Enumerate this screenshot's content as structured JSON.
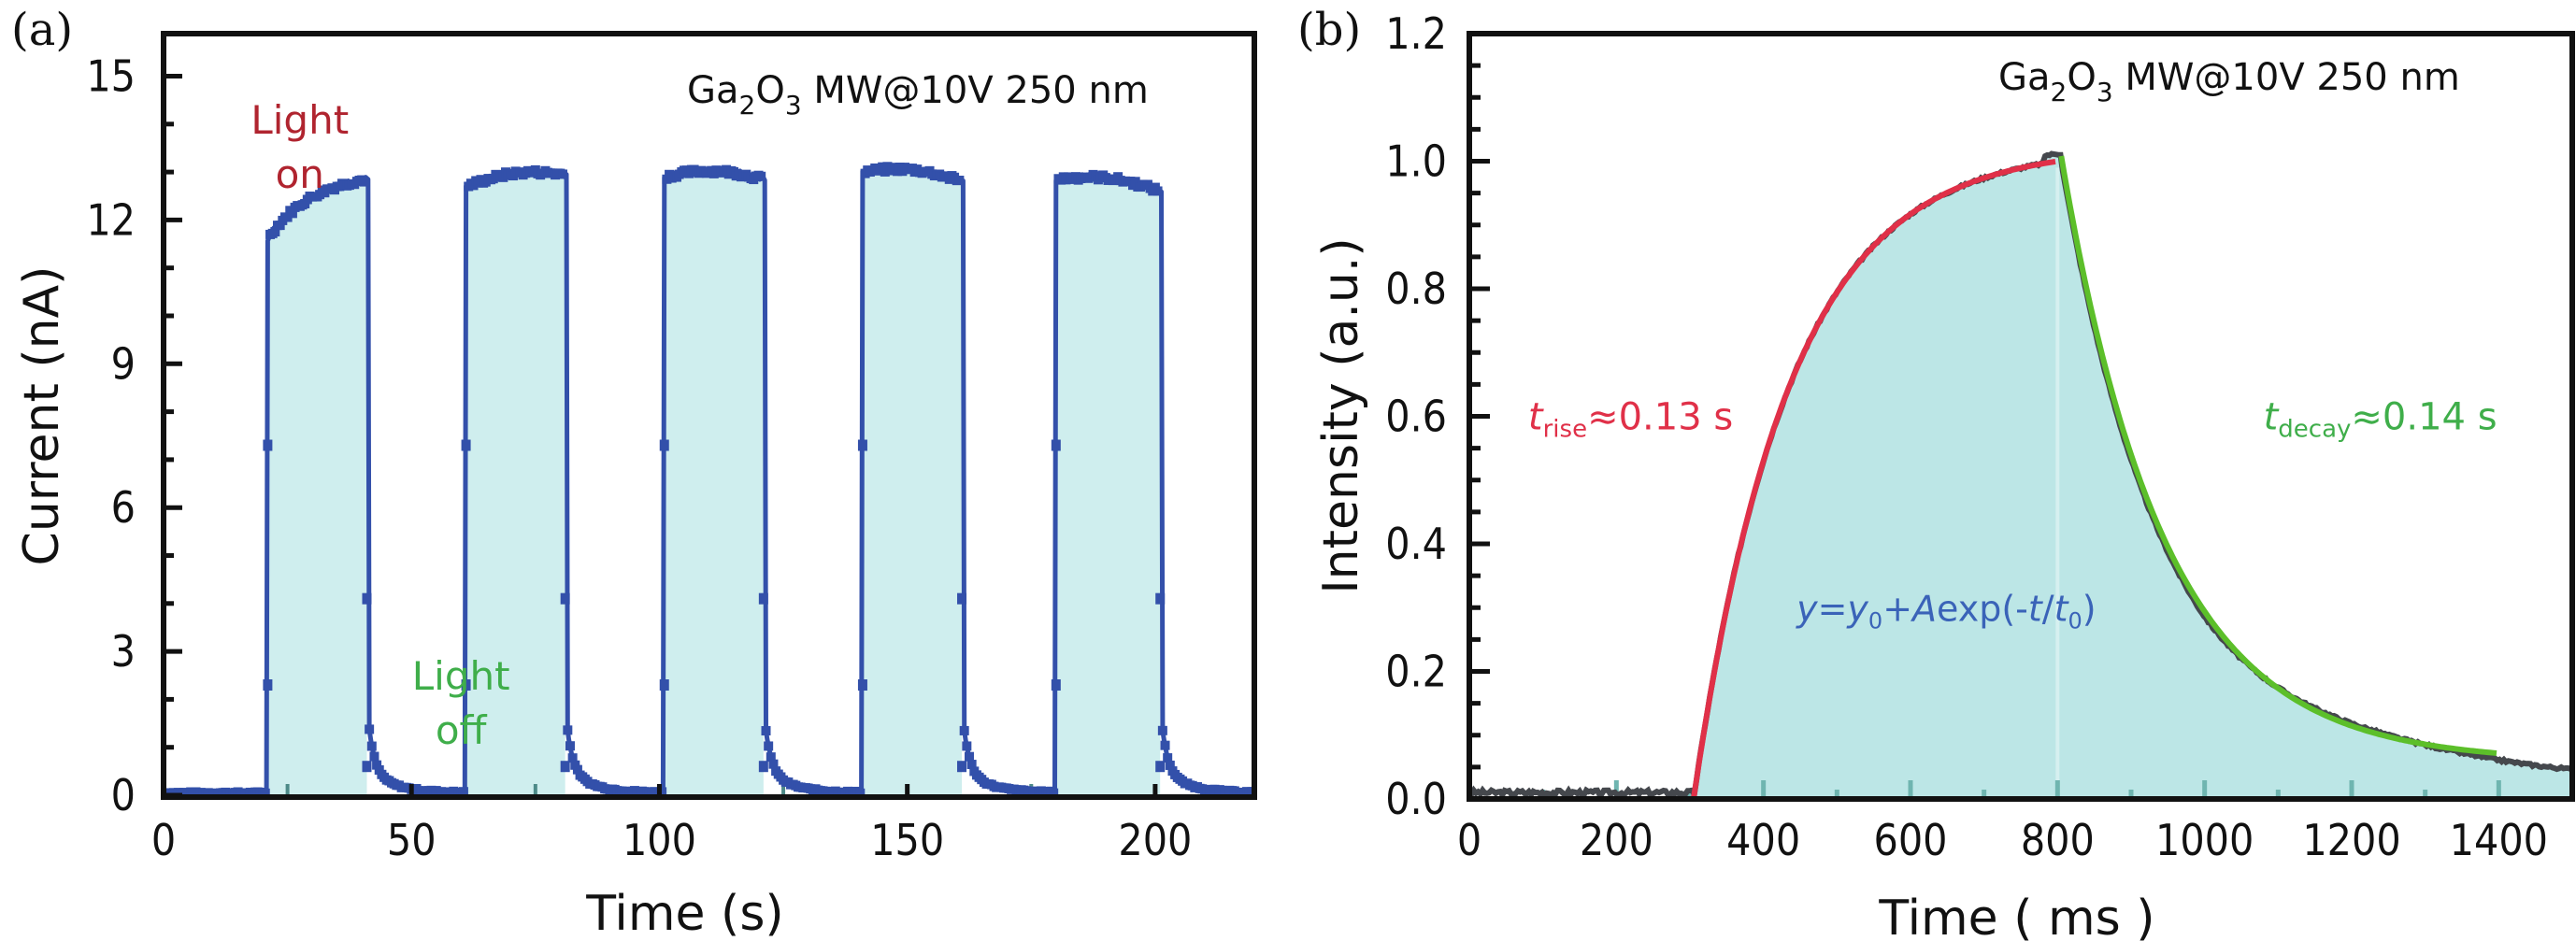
{
  "chart_data": [
    {
      "id": "a",
      "type": "line",
      "panel_label": "(a)",
      "title": "Ga2O3 MW@10V 250 nm",
      "title_parts": {
        "base1": "Ga",
        "sub1": "2",
        "base2": "O",
        "sub2": "3",
        "rest": " MW@10V 250 nm"
      },
      "xlabel": "Time (s)",
      "ylabel": "Current (nA)",
      "xlim": [
        0,
        220
      ],
      "ylim": [
        -0.2,
        16
      ],
      "xticks": [
        0,
        50,
        100,
        150,
        200
      ],
      "yticks": [
        0,
        3,
        6,
        9,
        12,
        15
      ],
      "y_minor_step": 1,
      "fill_on_intervals": true,
      "colors": {
        "line": "#3350aa",
        "fill": "#cfeeee",
        "light_on": "#b0242f",
        "light_off": "#3fae4a"
      },
      "annotations": [
        {
          "name": "light-on",
          "lines": [
            "Light",
            "on"
          ],
          "x": 19,
          "y": 13.8,
          "color": "#b0242f"
        },
        {
          "name": "light-off",
          "lines": [
            "Light",
            "off"
          ],
          "x": 51.5,
          "y": 2.2,
          "color": "#3fae4a"
        }
      ],
      "pulses": [
        {
          "on": 21,
          "off": 41,
          "start_level": 11.6,
          "end_level": 12.85
        },
        {
          "on": 61,
          "off": 81,
          "start_level": 12.7,
          "end_level": 12.95
        },
        {
          "on": 101,
          "off": 121,
          "start_level": 12.9,
          "end_level": 12.85
        },
        {
          "on": 141,
          "off": 161,
          "start_level": 13.0,
          "end_level": 12.8
        },
        {
          "on": 180,
          "off": 201,
          "start_level": 12.85,
          "end_level": 12.6
        }
      ],
      "baseline": 0.05,
      "series": [
        {
          "name": "Current",
          "description": "square-wave photoresponse, ~12.9 nA on / ~0 nA off"
        }
      ]
    },
    {
      "id": "b",
      "type": "line",
      "panel_label": "(b)",
      "title": "Ga2O3 MW@10V 250 nm",
      "title_parts": {
        "base1": "Ga",
        "sub1": "2",
        "base2": "O",
        "sub2": "3",
        "rest": " MW@10V 250 nm"
      },
      "xlabel": "Time ( ms )",
      "ylabel": "Intensity (a.u.)",
      "xlim": [
        0,
        1500
      ],
      "ylim": [
        0,
        1.2
      ],
      "xticks": [
        0,
        200,
        400,
        600,
        800,
        1000,
        1200,
        1400
      ],
      "yticks": [
        0.0,
        0.2,
        0.4,
        0.6,
        0.8,
        1.0,
        1.2
      ],
      "ytick_labels": [
        "0.0",
        "0.2",
        "0.4",
        "0.6",
        "0.8",
        "1.0",
        "1.2"
      ],
      "y_minor_step": 0.05,
      "colors": {
        "data": "#45484d",
        "rise_fit": "#e03048",
        "decay_fit": "#5cbf2a",
        "fill": "#bce6e6",
        "equation": "#3a63b8",
        "rise_label": "#e03048",
        "decay_label": "#3fae4a"
      },
      "rise": {
        "start_ms": 305,
        "end_ms": 800,
        "tau_ms": 130,
        "peak": 1.0
      },
      "decay": {
        "start_ms": 805,
        "end_ms": 1400,
        "tau_ms": 140,
        "y0": 0.05,
        "tail_end_value": 0.045
      },
      "baseline": 0.01,
      "annotations": {
        "rise": {
          "t": "t",
          "sub": "rise",
          "text": "≈0.13 s",
          "x": 80,
          "y": 0.6
        },
        "decay": {
          "t": "t",
          "sub": "decay",
          "text": "≈0.14 s",
          "x": 1080,
          "y": 0.6
        },
        "equation": {
          "parts": [
            "y",
            "=",
            "y",
            "0",
            "+",
            "A",
            "exp(-",
            "t",
            "/",
            "t",
            "0",
            ")"
          ],
          "x": 445,
          "y": 0.3
        }
      },
      "series": [
        {
          "name": "Measured intensity",
          "points": [
            [
              0,
              0.01
            ],
            [
              300,
              0.01
            ],
            [
              305,
              0.0
            ],
            [
              350,
              0.29
            ],
            [
              400,
              0.51
            ],
            [
              450,
              0.66
            ],
            [
              500,
              0.77
            ],
            [
              550,
              0.84
            ],
            [
              600,
              0.89
            ],
            [
              650,
              0.93
            ],
            [
              700,
              0.96
            ],
            [
              750,
              0.98
            ],
            [
              800,
              1.01
            ],
            [
              805,
              1.0
            ],
            [
              850,
              0.72
            ],
            [
              900,
              0.5
            ],
            [
              950,
              0.35
            ],
            [
              1000,
              0.25
            ],
            [
              1050,
              0.17
            ],
            [
              1100,
              0.12
            ],
            [
              1150,
              0.095
            ],
            [
              1200,
              0.08
            ],
            [
              1300,
              0.07
            ],
            [
              1400,
              0.06
            ],
            [
              1450,
              0.05
            ],
            [
              1500,
              0.045
            ]
          ]
        },
        {
          "name": "Rise fit",
          "description": "y=y0+Aexp(-t/t0), tau≈0.13 s"
        },
        {
          "name": "Decay fit",
          "description": "y=y0+Aexp(-t/t0), tau≈0.14 s"
        }
      ]
    }
  ]
}
